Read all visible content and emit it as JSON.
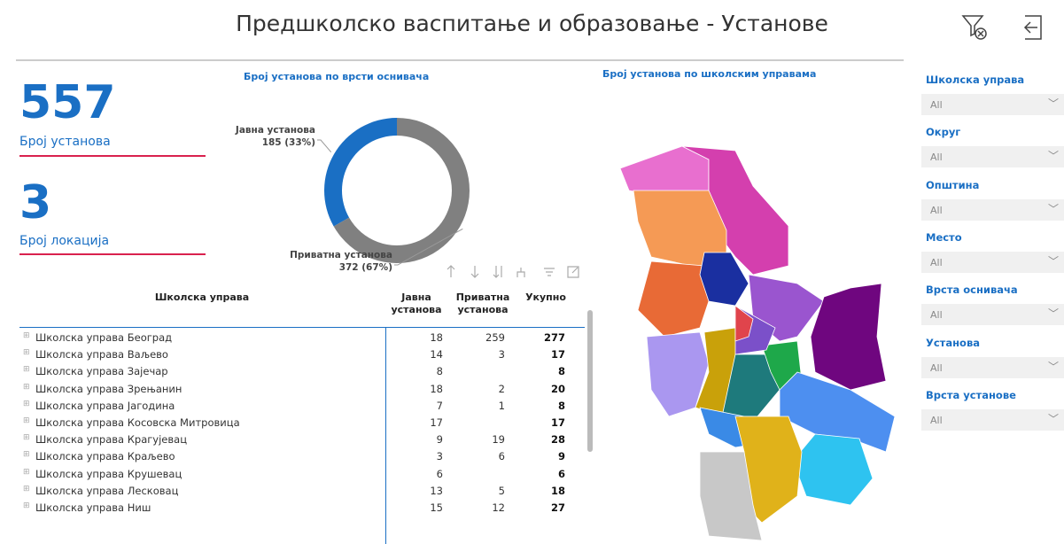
{
  "header": {
    "title": "Предшколско васпитање и образовање - Установе"
  },
  "kpis": [
    {
      "value": 557,
      "label": "Број установа"
    },
    {
      "value": 3,
      "label": "Број локација"
    }
  ],
  "chart_data": {
    "type": "pie",
    "title": "Број установа по врсти оснивача",
    "categories": [
      "Јавна установа",
      "Приватна установа"
    ],
    "values": [
      185,
      372
    ],
    "value_labels": [
      "185 (33%)",
      "372 (67%)"
    ],
    "colors": [
      "#1a6fc4",
      "#808080"
    ],
    "donut": true
  },
  "map": {
    "title": "Број установа по школским управама"
  },
  "table": {
    "columns": [
      "Школска управа",
      "Јавна установа",
      "Приватна установа",
      "Укупно"
    ],
    "rows": [
      [
        "Школска управа Београд",
        18,
        259,
        277
      ],
      [
        "Школска управа Ваљево",
        14,
        3,
        17
      ],
      [
        "Школска управа Зајечар",
        8,
        null,
        8
      ],
      [
        "Школска управа Зрењанин",
        18,
        2,
        20
      ],
      [
        "Школска управа Јагодина",
        7,
        1,
        8
      ],
      [
        "Школска управа Косовска Митровица",
        17,
        null,
        17
      ],
      [
        "Школска управа Крагујевац",
        9,
        19,
        28
      ],
      [
        "Школска управа Краљево",
        3,
        6,
        9
      ],
      [
        "Школска управа Крушевац",
        6,
        null,
        6
      ],
      [
        "Школска управа Лесковац",
        13,
        5,
        18
      ],
      [
        "Школска управа Ниш",
        15,
        12,
        27
      ]
    ]
  },
  "filters": [
    {
      "label": "Школска управа",
      "value": "All"
    },
    {
      "label": "Округ",
      "value": "All"
    },
    {
      "label": "Општина",
      "value": "All"
    },
    {
      "label": "Место",
      "value": "All"
    },
    {
      "label": "Врста оснивача",
      "value": "All"
    },
    {
      "label": "Установа",
      "value": "All"
    },
    {
      "label": "Врста установе",
      "value": "All"
    }
  ]
}
